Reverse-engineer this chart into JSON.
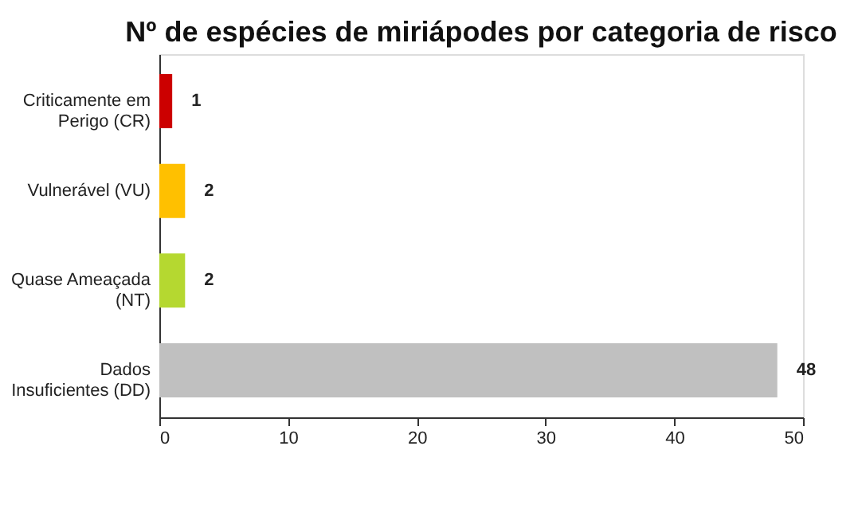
{
  "chart_data": {
    "type": "bar",
    "orientation": "horizontal",
    "title": "Nº de espécies de miriápodes por categoria de risco",
    "categories": [
      "Criticamente em Perigo (CR)",
      "Vulnerável (VU)",
      "Quase Ameaçada (NT)",
      "Dados Insuficientes (DD)"
    ],
    "values": [
      1,
      2,
      2,
      48
    ],
    "colors": [
      "#cc0000",
      "#ffc000",
      "#b5d830",
      "#c0c0c0"
    ],
    "xlim": [
      0,
      50
    ],
    "xticks": [
      0,
      10,
      20,
      30,
      40,
      50
    ],
    "grid": false,
    "data_labels": true
  }
}
